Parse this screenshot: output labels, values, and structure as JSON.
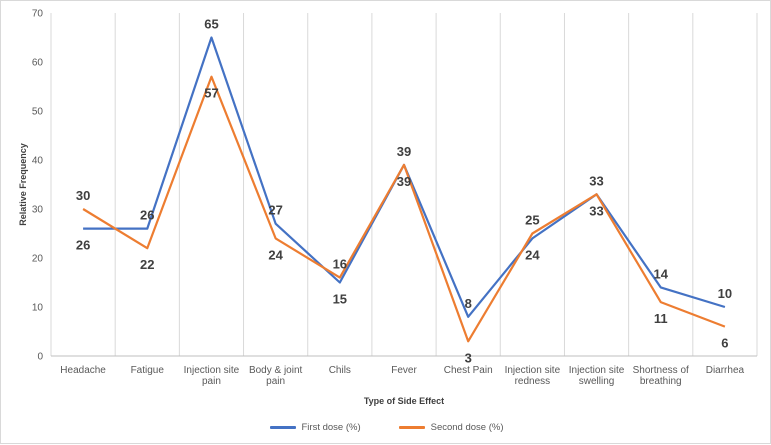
{
  "chart_data": {
    "type": "line",
    "title": "",
    "xlabel": "Type of Side Effect",
    "ylabel": "Relative Frequency",
    "ylim": [
      0,
      70
    ],
    "yticks": [
      0,
      10,
      20,
      30,
      40,
      50,
      60,
      70
    ],
    "grid": "vertical",
    "legend_position": "bottom",
    "categories": [
      [
        "Headache"
      ],
      [
        "Fatigue"
      ],
      [
        "Injection site",
        "pain"
      ],
      [
        "Body & joint",
        "pain"
      ],
      [
        "Chils"
      ],
      [
        "Fever"
      ],
      [
        "Chest Pain"
      ],
      [
        "Injection site",
        "redness"
      ],
      [
        "Injection site",
        "swelling"
      ],
      [
        "Shortness of",
        "breathing"
      ],
      [
        "Diarrhea"
      ]
    ],
    "series": [
      {
        "name": "First dose (%)",
        "color": "#4472C4",
        "values": [
          26,
          26,
          65,
          27,
          15,
          39,
          8,
          24,
          33,
          14,
          10
        ]
      },
      {
        "name": "Second dose (%)",
        "color": "#ED7D31",
        "values": [
          30,
          22,
          57,
          24,
          16,
          39,
          3,
          25,
          33,
          11,
          6
        ]
      }
    ]
  }
}
